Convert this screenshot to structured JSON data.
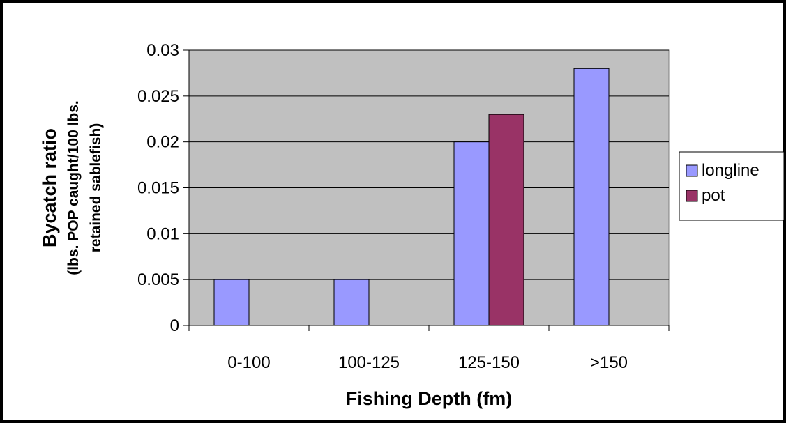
{
  "chart_data": {
    "type": "bar",
    "categories": [
      "0-100",
      "100-125",
      "125-150",
      ">150"
    ],
    "series": [
      {
        "name": "longline",
        "values": [
          0.005,
          0.005,
          0.02,
          0.028
        ],
        "color": "#9999ff"
      },
      {
        "name": "pot",
        "values": [
          null,
          null,
          0.023,
          null
        ],
        "color": "#993366"
      }
    ],
    "y_ticks": [
      "0",
      "0.005",
      "0.01",
      "0.015",
      "0.02",
      "0.025",
      "0.03"
    ],
    "ylim": [
      0,
      0.03
    ],
    "xlabel": "Fishing Depth (fm)",
    "ylabel": "Bycatch ratio",
    "ylabel_sub_1": "(lbs. POP caught/100 lbs.",
    "ylabel_sub_2": "retained sablefish)",
    "plot_background": "#c0c0c0",
    "grid": true,
    "legend_position": "right"
  }
}
